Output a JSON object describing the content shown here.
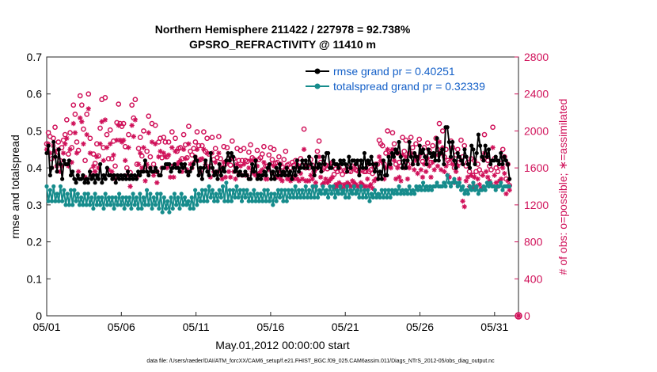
{
  "chart_data": {
    "type": "line",
    "title": "Northern Hemisphere 211422 / 227978 = 92.738%",
    "subtitle": "GPSRO_REFRACTIVITY @ 11410 m",
    "xlabel": "May.01,2012 00:00:00 start",
    "ylabel": "rmse and totalspread",
    "ylabel_right": "# of obs: o=possible; ∗=assimilated",
    "footnote": "data file: /Users/raeder/DAI/ATM_forcXX/CAM6_setup/f.e21.FHIST_BGC.f09_025.CAM6assim.011/Diags_NTrS_2012-05/obs_diag_output.nc",
    "xlim": [
      0,
      31.6
    ],
    "ylim": [
      0,
      0.7
    ],
    "ylim_right": [
      0,
      2800
    ],
    "xticks": [
      0,
      5,
      10,
      15,
      20,
      25,
      30
    ],
    "xtick_labels": [
      "05/01",
      "05/06",
      "05/11",
      "05/16",
      "05/21",
      "05/26",
      "05/31"
    ],
    "yticks": [
      0,
      0.1,
      0.2,
      0.3,
      0.4,
      0.5,
      0.6,
      0.7
    ],
    "ytick_labels": [
      "0",
      "0.1",
      "0.2",
      "0.3",
      "0.4",
      "0.5",
      "0.6",
      "0.7"
    ],
    "yticks_right": [
      0,
      400,
      800,
      1200,
      1600,
      2000,
      2400,
      2800
    ],
    "ytick_labels_right": [
      "0",
      "400",
      "800",
      "1200",
      "1600",
      "2000",
      "2400",
      "2800"
    ],
    "legend_location": "top-right",
    "colors": {
      "rmse": "#000000",
      "totalspread": "#168c8c",
      "obs": "#d0125a",
      "legend_text": "#1460c8"
    },
    "series": [
      {
        "name": "rmse grand pr = 0.40251",
        "values": [
          0.44,
          0.46,
          0.38,
          0.4,
          0.47,
          0.43,
          0.39,
          0.45,
          0.41,
          0.37,
          0.42,
          0.41,
          0.41,
          0.42,
          0.38,
          0.39,
          0.37,
          0.36,
          0.38,
          0.37,
          0.37,
          0.38,
          0.36,
          0.37,
          0.36,
          0.39,
          0.37,
          0.38,
          0.36,
          0.38,
          0.37,
          0.41,
          0.36,
          0.38,
          0.37,
          0.4,
          0.38,
          0.38,
          0.37,
          0.38,
          0.36,
          0.38,
          0.37,
          0.38,
          0.37,
          0.38,
          0.37,
          0.39,
          0.37,
          0.38,
          0.37,
          0.38,
          0.37,
          0.39,
          0.38,
          0.39,
          0.39,
          0.42,
          0.39,
          0.38,
          0.4,
          0.39,
          0.39,
          0.4,
          0.39,
          0.38,
          0.38,
          0.4,
          0.4,
          0.41,
          0.41,
          0.41,
          0.39,
          0.4,
          0.41,
          0.4,
          0.4,
          0.39,
          0.41,
          0.4,
          0.41,
          0.39,
          0.38,
          0.39,
          0.4,
          0.41,
          0.43,
          0.42,
          0.38,
          0.4,
          0.37,
          0.4,
          0.42,
          0.39,
          0.38,
          0.44,
          0.4,
          0.38,
          0.39,
          0.37,
          0.41,
          0.38,
          0.4,
          0.39,
          0.42,
          0.44,
          0.42,
          0.44,
          0.43,
          0.39,
          0.4,
          0.38,
          0.39,
          0.38,
          0.38,
          0.39,
          0.38,
          0.37,
          0.37,
          0.41,
          0.39,
          0.42,
          0.37,
          0.38,
          0.37,
          0.38,
          0.39,
          0.38,
          0.4,
          0.41,
          0.37,
          0.39,
          0.37,
          0.4,
          0.38,
          0.41,
          0.38,
          0.39,
          0.38,
          0.4,
          0.38,
          0.39,
          0.37,
          0.4,
          0.38,
          0.42,
          0.39,
          0.4,
          0.42,
          0.4,
          0.42,
          0.4,
          0.43,
          0.41,
          0.4,
          0.38,
          0.43,
          0.4,
          0.41,
          0.39,
          0.43,
          0.41,
          0.44,
          0.44,
          0.4,
          0.4,
          0.42,
          0.41,
          0.41,
          0.4,
          0.42,
          0.41,
          0.42,
          0.41,
          0.39,
          0.43,
          0.4,
          0.42,
          0.42,
          0.41,
          0.42,
          0.38,
          0.42,
          0.4,
          0.44,
          0.4,
          0.42,
          0.41,
          0.43,
          0.41,
          0.39,
          0.41,
          0.37,
          0.39,
          0.37,
          0.42,
          0.38,
          0.38,
          0.43,
          0.41,
          0.44,
          0.43,
          0.45,
          0.44,
          0.47,
          0.43,
          0.4,
          0.42,
          0.4,
          0.42,
          0.47,
          0.43,
          0.41,
          0.44,
          0.43,
          0.41,
          0.46,
          0.44,
          0.45,
          0.43,
          0.41,
          0.45,
          0.44,
          0.43,
          0.44,
          0.42,
          0.48,
          0.42,
          0.44,
          0.45,
          0.41,
          0.51,
          0.51,
          0.47,
          0.43,
          0.47,
          0.42,
          0.4,
          0.44,
          0.43,
          0.42,
          0.41,
          0.45,
          0.43,
          0.41,
          0.4,
          0.46,
          0.45,
          0.41,
          0.44,
          0.49,
          0.46,
          0.43,
          0.42,
          0.46,
          0.43,
          0.45,
          0.41,
          0.42,
          0.42,
          0.43,
          0.42,
          0.41,
          0.44,
          0.41,
          0.43,
          0.42,
          0.41,
          0.37
        ]
      },
      {
        "name": "totalspread grand pr = 0.32339",
        "values": [
          0.35,
          0.31,
          0.34,
          0.31,
          0.35,
          0.31,
          0.33,
          0.31,
          0.35,
          0.31,
          0.34,
          0.3,
          0.33,
          0.3,
          0.34,
          0.3,
          0.34,
          0.31,
          0.33,
          0.3,
          0.32,
          0.3,
          0.33,
          0.3,
          0.33,
          0.3,
          0.32,
          0.29,
          0.33,
          0.3,
          0.32,
          0.3,
          0.32,
          0.29,
          0.33,
          0.3,
          0.32,
          0.3,
          0.32,
          0.29,
          0.32,
          0.3,
          0.33,
          0.3,
          0.32,
          0.29,
          0.32,
          0.3,
          0.32,
          0.29,
          0.33,
          0.3,
          0.32,
          0.29,
          0.33,
          0.29,
          0.32,
          0.3,
          0.34,
          0.3,
          0.33,
          0.29,
          0.32,
          0.3,
          0.33,
          0.29,
          0.33,
          0.28,
          0.32,
          0.29,
          0.31,
          0.28,
          0.32,
          0.29,
          0.33,
          0.3,
          0.32,
          0.29,
          0.33,
          0.3,
          0.32,
          0.3,
          0.31,
          0.29,
          0.32,
          0.29,
          0.34,
          0.3,
          0.33,
          0.31,
          0.34,
          0.31,
          0.34,
          0.31,
          0.35,
          0.32,
          0.34,
          0.31,
          0.33,
          0.31,
          0.34,
          0.32,
          0.35,
          0.31,
          0.36,
          0.31,
          0.34,
          0.31,
          0.34,
          0.32,
          0.35,
          0.32,
          0.34,
          0.31,
          0.34,
          0.32,
          0.34,
          0.31,
          0.33,
          0.31,
          0.34,
          0.31,
          0.33,
          0.31,
          0.33,
          0.31,
          0.34,
          0.31,
          0.34,
          0.31,
          0.33,
          0.3,
          0.33,
          0.31,
          0.34,
          0.32,
          0.34,
          0.31,
          0.34,
          0.31,
          0.34,
          0.32,
          0.34,
          0.32,
          0.35,
          0.32,
          0.34,
          0.32,
          0.34,
          0.32,
          0.35,
          0.32,
          0.34,
          0.32,
          0.35,
          0.32,
          0.35,
          0.32,
          0.34,
          0.33,
          0.35,
          0.33,
          0.34,
          0.32,
          0.35,
          0.33,
          0.35,
          0.32,
          0.34,
          0.33,
          0.35,
          0.33,
          0.34,
          0.32,
          0.35,
          0.32,
          0.34,
          0.33,
          0.35,
          0.33,
          0.34,
          0.32,
          0.35,
          0.32,
          0.34,
          0.32,
          0.34,
          0.31,
          0.33,
          0.32,
          0.34,
          0.32,
          0.33,
          0.32,
          0.34,
          0.32,
          0.34,
          0.32,
          0.34,
          0.32,
          0.34,
          0.33,
          0.34,
          0.33,
          0.35,
          0.33,
          0.34,
          0.33,
          0.34,
          0.33,
          0.35,
          0.33,
          0.34,
          0.33,
          0.35,
          0.34,
          0.35,
          0.34,
          0.36,
          0.34,
          0.35,
          0.34,
          0.35,
          0.34,
          0.35,
          0.35,
          0.36,
          0.35,
          0.35,
          0.35,
          0.36,
          0.35,
          0.38,
          0.36,
          0.35,
          0.36,
          0.37,
          0.36,
          0.35,
          0.36,
          0.34,
          0.35,
          0.33,
          0.34,
          0.33,
          0.35,
          0.34,
          0.36,
          0.34,
          0.35,
          0.33,
          0.34,
          0.34,
          0.35,
          0.34,
          0.36,
          0.35,
          0.36,
          0.35,
          0.35,
          0.34,
          0.35,
          0.35,
          0.36,
          0.34,
          0.35,
          0.35,
          0.35,
          0.35
        ]
      },
      {
        "name": "possible obs",
        "marker": "circle",
        "axis": "right",
        "values": [
          1860,
          1980,
          1940,
          1700,
          1920,
          2040,
          1730,
          1880,
          1680,
          1820,
          1900,
          1960,
          2120,
          1750,
          1980,
          1820,
          2280,
          2180,
          1880,
          1790,
          2380,
          2280,
          2020,
          1680,
          2180,
          2400,
          1920,
          1580,
          1750,
          1650,
          1860,
          1730,
          2030,
          2340,
          1820,
          2360,
          1960,
          1700,
          2010,
          1700,
          1890,
          1620,
          2090,
          2290,
          2080,
          2050,
          2080,
          1830,
          1600,
          1960,
          1550,
          2280,
          2140,
          2340,
          1640,
          1810,
          1930,
          1730,
          2000,
          1610,
          1780,
          2160,
          1720,
          2080,
          1640,
          2060,
          1560,
          1880,
          1920,
          1710,
          1930,
          1880,
          1720,
          1880,
          1620,
          1990,
          1620,
          1920,
          1780,
          1810,
          1820,
          1700,
          1960,
          1850,
          1710,
          2050,
          1780,
          1740,
          1810,
          1880,
          1990,
          1840,
          1690,
          1840,
          1990,
          1780,
          1920,
          1750,
          1620,
          1930,
          1690,
          1810,
          1710,
          1940,
          1700,
          1600,
          1830,
          1640,
          1820,
          1700,
          1630,
          1890,
          1700,
          1620,
          1810,
          1680,
          1790,
          1680,
          1810,
          1680,
          1670,
          1770,
          1850,
          1710,
          1690,
          1680,
          1790,
          1690,
          1710,
          1750,
          1830,
          1620,
          1620,
          1740,
          1820,
          1690,
          1800,
          1650,
          1660,
          1720,
          1640,
          1610,
          1690,
          1780,
          1630,
          1640,
          1600,
          1660,
          1630,
          1680,
          1630,
          1610,
          1700,
          1630,
          2020,
          1600,
          1620,
          1600,
          1690,
          1630,
          1560,
          1590,
          1780,
          1890,
          1660,
          1580,
          1600,
          1630,
          1590,
          1620,
          1640,
          1660,
          1530,
          1590,
          1560,
          1600,
          1570,
          1530,
          1570,
          1560,
          1610,
          1570,
          1560,
          1620,
          1600,
          1580,
          1570,
          1560,
          1610,
          1580,
          1560,
          1560,
          1640,
          1560,
          1580,
          1540,
          1620,
          1640,
          1640,
          1900,
          1860,
          1840,
          1640,
          1760,
          2000,
          1780,
          1760,
          1980,
          1860,
          1640,
          1760,
          1660,
          1620,
          1930,
          1780,
          1900,
          1640,
          1760,
          1930,
          1820,
          1740,
          1860,
          1700,
          1910,
          1760,
          1670,
          1820,
          1720,
          1870,
          1790,
          1660,
          1840,
          1740,
          1920,
          1800,
          2080,
          1760,
          2000,
          1720,
          1800,
          1680,
          1660,
          1890,
          1820,
          1600,
          1740,
          1800,
          1660,
          1900,
          1720,
          1840,
          1620,
          1660,
          1560,
          1700,
          1520,
          1680,
          1560,
          1640,
          1580,
          1540,
          1700,
          1960,
          1740,
          1680,
          1620,
          1580,
          2040,
          1700,
          1600,
          1560,
          1620,
          1650,
          1800,
          1720,
          1480,
          1640,
          1410
        ]
      },
      {
        "name": "assimilated obs",
        "marker": "asterisk",
        "axis": "right",
        "values": [
          1800,
          1860,
          1760,
          1600,
          1840,
          1780,
          1620,
          1800,
          1560,
          1620,
          1760,
          1860,
          1920,
          1620,
          1800,
          1660,
          2080,
          1980,
          1760,
          1560,
          2140,
          2100,
          1860,
          1500,
          1960,
          2240,
          1760,
          1520,
          1620,
          1560,
          1720,
          1600,
          1860,
          2100,
          1680,
          2120,
          1820,
          1580,
          1860,
          1560,
          1740,
          1480,
          1900,
          2060,
          1900,
          1880,
          1900,
          1680,
          1520,
          1820,
          1400,
          2060,
          1940,
          2120,
          1500,
          1640,
          1760,
          1600,
          1820,
          1460,
          1640,
          1980,
          1600,
          1880,
          1520,
          1860,
          1440,
          1720,
          1780,
          1600,
          1760,
          1720,
          1600,
          1740,
          1500,
          1820,
          1500,
          1780,
          1640,
          1660,
          1680,
          1560,
          1800,
          1700,
          1580,
          1860,
          1640,
          1600,
          1660,
          1720,
          1800,
          1680,
          1560,
          1700,
          1800,
          1640,
          1760,
          1600,
          1500,
          1760,
          1560,
          1660,
          1560,
          1760,
          1560,
          1480,
          1660,
          1500,
          1660,
          1560,
          1500,
          1720,
          1560,
          1480,
          1640,
          1540,
          1620,
          1520,
          1640,
          1520,
          1520,
          1600,
          1680,
          1560,
          1540,
          1520,
          1620,
          1540,
          1560,
          1580,
          1660,
          1480,
          1480,
          1580,
          1640,
          1540,
          1620,
          1500,
          1500,
          1560,
          1480,
          1460,
          1540,
          1600,
          1480,
          1480,
          1460,
          1500,
          1480,
          1520,
          1480,
          1460,
          1540,
          1480,
          1800,
          1460,
          1460,
          1460,
          1520,
          1480,
          1400,
          1440,
          1600,
          1720,
          1500,
          1420,
          1440,
          1480,
          1440,
          1460,
          1480,
          1500,
          1380,
          1420,
          1400,
          1440,
          1420,
          1380,
          1420,
          1400,
          1440,
          1420,
          1400,
          1460,
          1440,
          1420,
          1400,
          1400,
          1440,
          1420,
          1400,
          1400,
          1480,
          1400,
          1420,
          1380,
          1460,
          1480,
          1480,
          1720,
          1680,
          1660,
          1480,
          1600,
          1800,
          1620,
          1600,
          1800,
          1680,
          1480,
          1600,
          1500,
          1460,
          1740,
          1600,
          1720,
          1480,
          1600,
          1760,
          1640,
          1580,
          1680,
          1540,
          1720,
          1580,
          1500,
          1640,
          1560,
          1700,
          1620,
          1500,
          1660,
          1580,
          1740,
          1620,
          1880,
          1580,
          1820,
          1560,
          1620,
          1520,
          1500,
          1700,
          1640,
          1440,
          1560,
          1620,
          1480,
          1680,
          1240,
          1180,
          1460,
          1500,
          1400,
          1520,
          1380,
          1500,
          1400,
          1480,
          1420,
          1380,
          1520,
          1760,
          1560,
          1500,
          1460,
          1420,
          1820,
          1520,
          1440,
          1400,
          1460,
          1480,
          1600,
          1540,
          1320,
          1460,
          1360
        ]
      }
    ],
    "zero_markers": {
      "day_offset": 31.6,
      "value": 0,
      "axis": "right"
    }
  }
}
